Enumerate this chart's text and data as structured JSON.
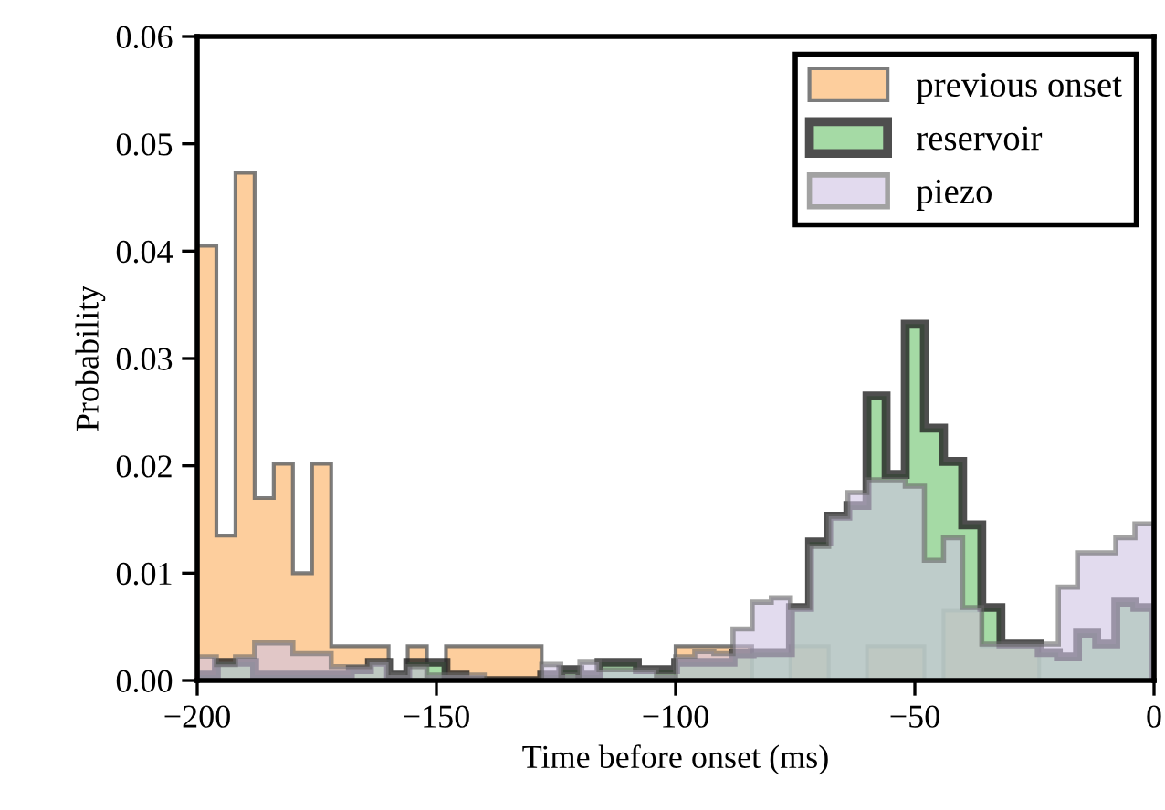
{
  "chart_data": {
    "type": "histogram",
    "xlabel": "Time before onset (ms)",
    "ylabel": "Probability",
    "bins": [
      -200,
      -196,
      -192,
      -188,
      -184,
      -180,
      -176,
      -172,
      -168,
      -164,
      -160,
      -156,
      -152,
      -148,
      -144,
      -140,
      -136,
      -132,
      -128,
      -124,
      -120,
      -116,
      -112,
      -108,
      -104,
      -100,
      -96,
      -92,
      -88,
      -84,
      -80,
      -76,
      -72,
      -68,
      -64,
      -60,
      -56,
      -52,
      -48,
      -44,
      -40,
      -36,
      -32,
      -28,
      -24,
      -20,
      -16,
      -12,
      -8,
      -4,
      0
    ],
    "series": [
      {
        "name": "previous onset",
        "color": "#fdc68c",
        "values": [
          0.0405,
          0.0135,
          0.0473,
          0.017,
          0.0202,
          0.01,
          0.0202,
          0.0032,
          0.0032,
          0.0032,
          0,
          0.0032,
          0,
          0.0032,
          0.0032,
          0.0032,
          0.0032,
          0.0032,
          0,
          0,
          0,
          0,
          0,
          0,
          0,
          0.0032,
          0.0032,
          0.0032,
          0.0032,
          0,
          0,
          0.0032,
          0.0032,
          0,
          0,
          0.0032,
          0.0032,
          0.0032,
          0,
          0.0065,
          0.0065,
          0.0032,
          0.0032,
          0.0032,
          0,
          0,
          0,
          0,
          0,
          0
        ]
      },
      {
        "name": "reservoir",
        "color": "#8fd18f",
        "values": [
          0.0005,
          0.0017,
          0.0017,
          0.0005,
          0.0005,
          0.0005,
          0.0005,
          0.0005,
          0.001,
          0.0017,
          0.0005,
          0.0017,
          0.0017,
          0.0005,
          0,
          0,
          0,
          0,
          0.0005,
          0.001,
          0.0005,
          0.0017,
          0.0017,
          0.001,
          0.001,
          0.0017,
          0.0017,
          0.0017,
          0.0025,
          0.0026,
          0.0026,
          0.0068,
          0.0129,
          0.0153,
          0.0163,
          0.0265,
          0.0192,
          0.0332,
          0.0235,
          0.0204,
          0.0145,
          0.0068,
          0.0034,
          0.0034,
          0.0026,
          0.0022,
          0.0044,
          0.0034,
          0.0073,
          0.0068
        ]
      },
      {
        "name": "piezo",
        "color": "#cfc3e3",
        "values": [
          0.0022,
          0.0015,
          0.0022,
          0.0035,
          0.0035,
          0.0025,
          0.0025,
          0.0013,
          0.0013,
          0.0017,
          0.0005,
          0.0013,
          0.0005,
          0.0005,
          0.0005,
          0,
          0,
          0,
          0.0015,
          0.0005,
          0.0017,
          0.001,
          0.001,
          0.001,
          0.0005,
          0.0022,
          0.0027,
          0.0025,
          0.0048,
          0.0073,
          0.0077,
          0.0068,
          0.0125,
          0.0153,
          0.0175,
          0.0187,
          0.0187,
          0.0181,
          0.0112,
          0.0133,
          0.0068,
          0.0034,
          0.0034,
          0.0034,
          0.0034,
          0.0087,
          0.0119,
          0.0119,
          0.0133,
          0.0146
        ]
      }
    ],
    "xlim": [
      -200,
      0
    ],
    "ylim": [
      0,
      0.06
    ],
    "xticks": [
      {
        "value": -200,
        "label": "−200"
      },
      {
        "value": -150,
        "label": "−150"
      },
      {
        "value": -100,
        "label": "−100"
      },
      {
        "value": -50,
        "label": "−50"
      },
      0
    ],
    "yticks": [
      {
        "value": 0,
        "label": "0.00"
      },
      {
        "value": 0.01,
        "label": "0.01"
      },
      {
        "value": 0.02,
        "label": "0.02"
      },
      {
        "value": 0.03,
        "label": "0.03"
      },
      {
        "value": 0.04,
        "label": "0.04"
      },
      {
        "value": 0.05,
        "label": "0.05"
      },
      {
        "value": 0.06,
        "label": "0.06"
      }
    ],
    "grid": false,
    "legend": "top right"
  }
}
